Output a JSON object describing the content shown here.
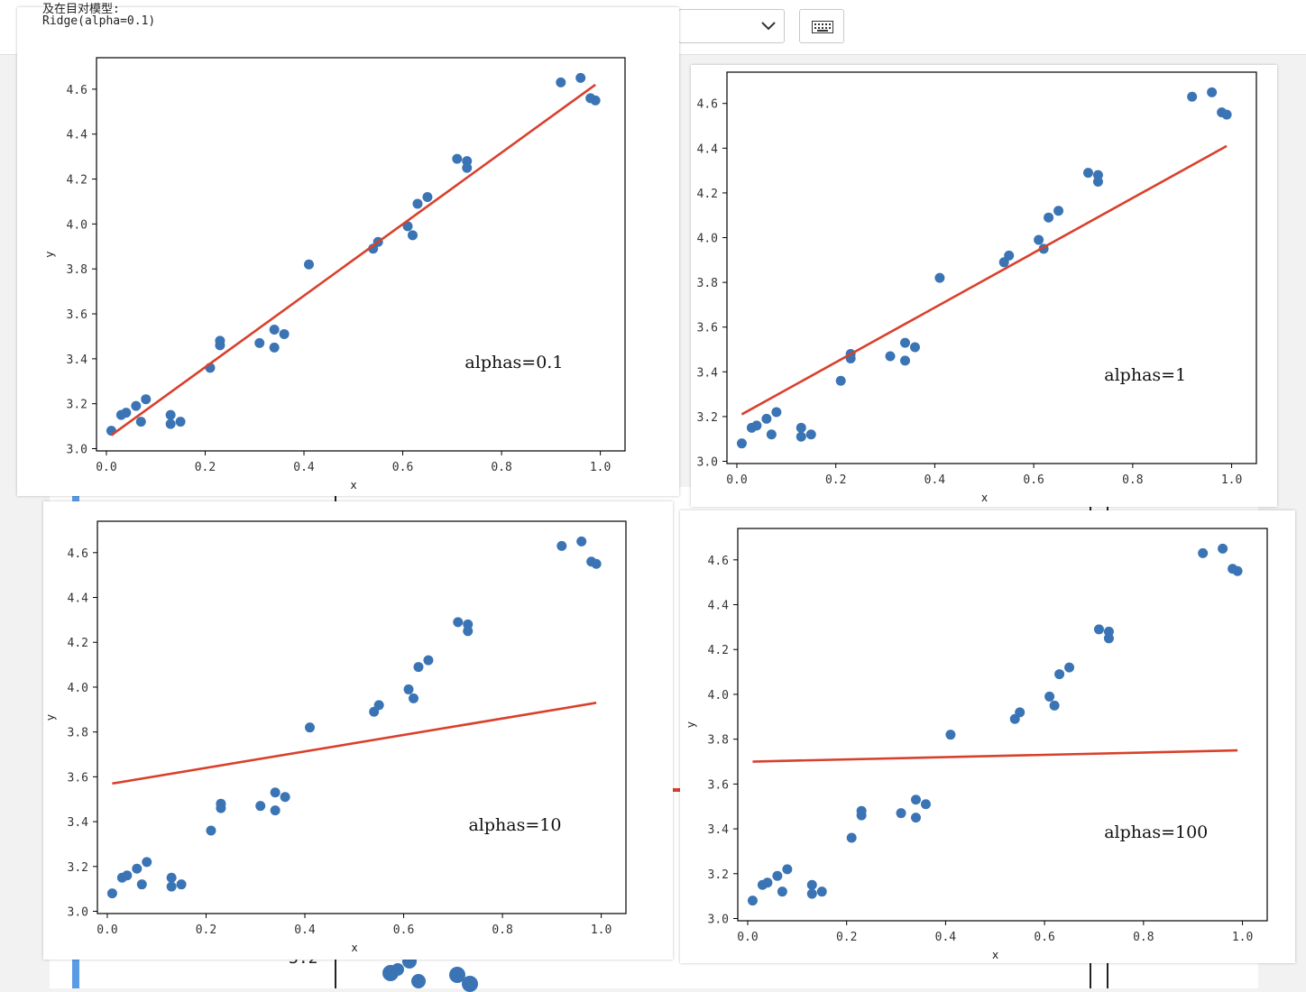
{
  "top_clip_text": "及在目对模型:",
  "header": {
    "model_label": "Ridge(alpha=0.1)"
  },
  "background": {
    "clipped_tick": "3.2"
  },
  "colors": {
    "points": "#3a74b5",
    "fit_line": "#d9402c",
    "frame": "#000000"
  },
  "icons": {
    "dropdown": "chevron-down-icon",
    "keyboard": "keyboard-icon"
  },
  "chart_data": [
    {
      "type": "scatter",
      "xlabel": "x",
      "ylabel": "y",
      "xlim": [
        -0.02,
        1.05
      ],
      "ylim": [
        2.99,
        4.74
      ],
      "xticks": [
        "0.0",
        "0.2",
        "0.4",
        "0.6",
        "0.8",
        "1.0"
      ],
      "yticks": [
        "3.0",
        "3.2",
        "3.4",
        "3.6",
        "3.8",
        "4.0",
        "4.2",
        "4.4",
        "4.6"
      ],
      "annotation": "alphas=0.1",
      "points": [
        [
          0.01,
          3.08
        ],
        [
          0.03,
          3.15
        ],
        [
          0.04,
          3.16
        ],
        [
          0.06,
          3.19
        ],
        [
          0.07,
          3.12
        ],
        [
          0.08,
          3.22
        ],
        [
          0.13,
          3.15
        ],
        [
          0.13,
          3.11
        ],
        [
          0.15,
          3.12
        ],
        [
          0.21,
          3.36
        ],
        [
          0.23,
          3.48
        ],
        [
          0.23,
          3.46
        ],
        [
          0.31,
          3.47
        ],
        [
          0.34,
          3.53
        ],
        [
          0.34,
          3.45
        ],
        [
          0.36,
          3.51
        ],
        [
          0.41,
          3.82
        ],
        [
          0.54,
          3.89
        ],
        [
          0.55,
          3.92
        ],
        [
          0.61,
          3.99
        ],
        [
          0.62,
          3.95
        ],
        [
          0.63,
          4.09
        ],
        [
          0.65,
          4.12
        ],
        [
          0.71,
          4.29
        ],
        [
          0.73,
          4.28
        ],
        [
          0.73,
          4.25
        ],
        [
          0.92,
          4.63
        ],
        [
          0.96,
          4.65
        ],
        [
          0.98,
          4.56
        ],
        [
          0.99,
          4.55
        ]
      ],
      "fit_line": {
        "x": [
          0.01,
          0.99
        ],
        "y": [
          3.06,
          4.62
        ]
      }
    },
    {
      "type": "scatter",
      "xlabel": "x",
      "ylabel": "y",
      "xlim": [
        -0.02,
        1.05
      ],
      "ylim": [
        2.99,
        4.74
      ],
      "xticks": [
        "0.0",
        "0.2",
        "0.4",
        "0.6",
        "0.8",
        "1.0"
      ],
      "yticks": [
        "3.0",
        "3.2",
        "3.4",
        "3.6",
        "3.8",
        "4.0",
        "4.2",
        "4.4",
        "4.6"
      ],
      "annotation": "alphas=1",
      "points": [
        [
          0.01,
          3.08
        ],
        [
          0.03,
          3.15
        ],
        [
          0.04,
          3.16
        ],
        [
          0.06,
          3.19
        ],
        [
          0.07,
          3.12
        ],
        [
          0.08,
          3.22
        ],
        [
          0.13,
          3.15
        ],
        [
          0.13,
          3.11
        ],
        [
          0.15,
          3.12
        ],
        [
          0.21,
          3.36
        ],
        [
          0.23,
          3.48
        ],
        [
          0.23,
          3.46
        ],
        [
          0.31,
          3.47
        ],
        [
          0.34,
          3.53
        ],
        [
          0.34,
          3.45
        ],
        [
          0.36,
          3.51
        ],
        [
          0.41,
          3.82
        ],
        [
          0.54,
          3.89
        ],
        [
          0.55,
          3.92
        ],
        [
          0.61,
          3.99
        ],
        [
          0.62,
          3.95
        ],
        [
          0.63,
          4.09
        ],
        [
          0.65,
          4.12
        ],
        [
          0.71,
          4.29
        ],
        [
          0.73,
          4.28
        ],
        [
          0.73,
          4.25
        ],
        [
          0.92,
          4.63
        ],
        [
          0.96,
          4.65
        ],
        [
          0.98,
          4.56
        ],
        [
          0.99,
          4.55
        ]
      ],
      "fit_line": {
        "x": [
          0.01,
          0.99
        ],
        "y": [
          3.21,
          4.41
        ]
      }
    },
    {
      "type": "scatter",
      "xlabel": "x",
      "ylabel": "y",
      "xlim": [
        -0.02,
        1.05
      ],
      "ylim": [
        2.99,
        4.74
      ],
      "xticks": [
        "0.0",
        "0.2",
        "0.4",
        "0.6",
        "0.8",
        "1.0"
      ],
      "yticks": [
        "3.0",
        "3.2",
        "3.4",
        "3.6",
        "3.8",
        "4.0",
        "4.2",
        "4.4",
        "4.6"
      ],
      "annotation": "alphas=10",
      "points": [
        [
          0.01,
          3.08
        ],
        [
          0.03,
          3.15
        ],
        [
          0.04,
          3.16
        ],
        [
          0.06,
          3.19
        ],
        [
          0.07,
          3.12
        ],
        [
          0.08,
          3.22
        ],
        [
          0.13,
          3.15
        ],
        [
          0.13,
          3.11
        ],
        [
          0.15,
          3.12
        ],
        [
          0.21,
          3.36
        ],
        [
          0.23,
          3.48
        ],
        [
          0.23,
          3.46
        ],
        [
          0.31,
          3.47
        ],
        [
          0.34,
          3.53
        ],
        [
          0.34,
          3.45
        ],
        [
          0.36,
          3.51
        ],
        [
          0.41,
          3.82
        ],
        [
          0.54,
          3.89
        ],
        [
          0.55,
          3.92
        ],
        [
          0.61,
          3.99
        ],
        [
          0.62,
          3.95
        ],
        [
          0.63,
          4.09
        ],
        [
          0.65,
          4.12
        ],
        [
          0.71,
          4.29
        ],
        [
          0.73,
          4.28
        ],
        [
          0.73,
          4.25
        ],
        [
          0.92,
          4.63
        ],
        [
          0.96,
          4.65
        ],
        [
          0.98,
          4.56
        ],
        [
          0.99,
          4.55
        ]
      ],
      "fit_line": {
        "x": [
          0.01,
          0.99
        ],
        "y": [
          3.57,
          3.93
        ]
      }
    },
    {
      "type": "scatter",
      "xlabel": "x",
      "ylabel": "y",
      "xlim": [
        -0.02,
        1.05
      ],
      "ylim": [
        2.99,
        4.74
      ],
      "xticks": [
        "0.0",
        "0.2",
        "0.4",
        "0.6",
        "0.8",
        "1.0"
      ],
      "yticks": [
        "3.0",
        "3.2",
        "3.4",
        "3.6",
        "3.8",
        "4.0",
        "4.2",
        "4.4",
        "4.6"
      ],
      "annotation": "alphas=100",
      "points": [
        [
          0.01,
          3.08
        ],
        [
          0.03,
          3.15
        ],
        [
          0.04,
          3.16
        ],
        [
          0.06,
          3.19
        ],
        [
          0.07,
          3.12
        ],
        [
          0.08,
          3.22
        ],
        [
          0.13,
          3.15
        ],
        [
          0.13,
          3.11
        ],
        [
          0.15,
          3.12
        ],
        [
          0.21,
          3.36
        ],
        [
          0.23,
          3.48
        ],
        [
          0.23,
          3.46
        ],
        [
          0.31,
          3.47
        ],
        [
          0.34,
          3.53
        ],
        [
          0.34,
          3.45
        ],
        [
          0.36,
          3.51
        ],
        [
          0.41,
          3.82
        ],
        [
          0.54,
          3.89
        ],
        [
          0.55,
          3.92
        ],
        [
          0.61,
          3.99
        ],
        [
          0.62,
          3.95
        ],
        [
          0.63,
          4.09
        ],
        [
          0.65,
          4.12
        ],
        [
          0.71,
          4.29
        ],
        [
          0.73,
          4.28
        ],
        [
          0.73,
          4.25
        ],
        [
          0.92,
          4.63
        ],
        [
          0.96,
          4.65
        ],
        [
          0.98,
          4.56
        ],
        [
          0.99,
          4.55
        ]
      ],
      "fit_line": {
        "x": [
          0.01,
          0.99
        ],
        "y": [
          3.7,
          3.75
        ]
      }
    }
  ]
}
